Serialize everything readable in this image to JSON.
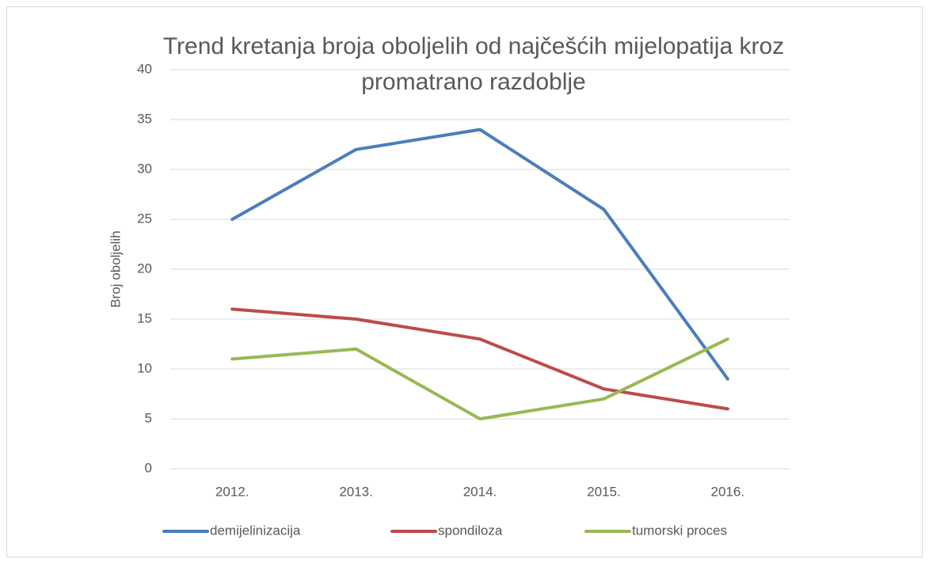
{
  "chart_data": {
    "type": "line",
    "title": "Trend kretanja broja oboljelih od najčešćih mijelopatija kroz promatrano razdoblje",
    "y_label": "Broj oboljelih",
    "categories": [
      "2012.",
      "2013.",
      "2014.",
      "2015.",
      "2016."
    ],
    "series": [
      {
        "name": "demijelinizacija",
        "color": "#4a7ebb",
        "values": [
          25,
          32,
          34,
          26,
          9
        ]
      },
      {
        "name": "spondiloza",
        "color": "#be4b48",
        "values": [
          16,
          15,
          13,
          8,
          6
        ]
      },
      {
        "name": "tumorski proces",
        "color": "#98b954",
        "values": [
          11,
          12,
          5,
          7,
          13
        ]
      }
    ],
    "ylim": [
      0,
      40
    ],
    "yticks": [
      0,
      5,
      10,
      15,
      20,
      25,
      30,
      35,
      40
    ],
    "grid": true,
    "legend": "bottom"
  }
}
